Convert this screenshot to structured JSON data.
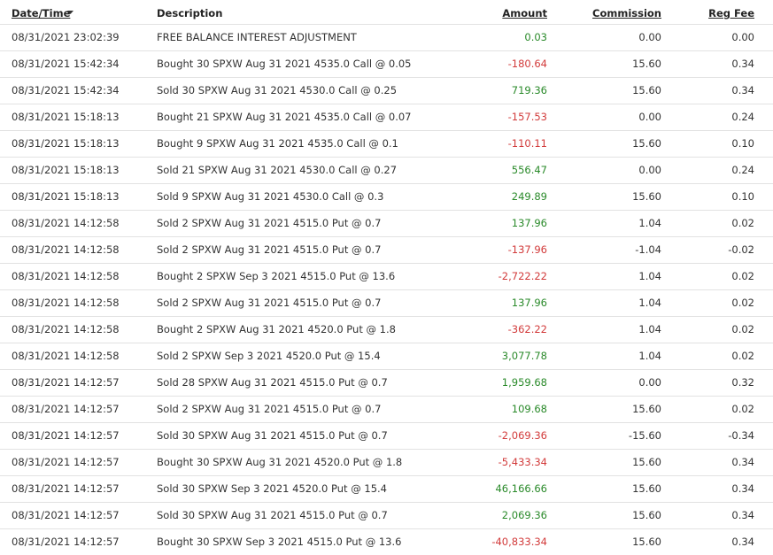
{
  "table": {
    "columns": [
      "Date/Time",
      "Description",
      "Amount",
      "Commission",
      "Reg Fee"
    ],
    "rows": [
      [
        "08/31/2021 23:02:39",
        "FREE BALANCE INTEREST ADJUSTMENT",
        "0.03",
        "0.00",
        "0.00"
      ],
      [
        "08/31/2021 15:42:34",
        "Bought 30 SPXW Aug 31 2021 4535.0 Call @ 0.05",
        "-180.64",
        "15.60",
        "0.34"
      ],
      [
        "08/31/2021 15:42:34",
        "Sold 30 SPXW Aug 31 2021 4530.0 Call @ 0.25",
        "719.36",
        "15.60",
        "0.34"
      ],
      [
        "08/31/2021 15:18:13",
        "Bought 21 SPXW Aug 31 2021 4535.0 Call @ 0.07",
        "-157.53",
        "0.00",
        "0.24"
      ],
      [
        "08/31/2021 15:18:13",
        "Bought 9 SPXW Aug 31 2021 4535.0 Call @ 0.1",
        "-110.11",
        "15.60",
        "0.10"
      ],
      [
        "08/31/2021 15:18:13",
        "Sold 21 SPXW Aug 31 2021 4530.0 Call @ 0.27",
        "556.47",
        "0.00",
        "0.24"
      ],
      [
        "08/31/2021 15:18:13",
        "Sold 9 SPXW Aug 31 2021 4530.0 Call @ 0.3",
        "249.89",
        "15.60",
        "0.10"
      ],
      [
        "08/31/2021 14:12:58",
        "Sold 2 SPXW Aug 31 2021 4515.0 Put @ 0.7",
        "137.96",
        "1.04",
        "0.02"
      ],
      [
        "08/31/2021 14:12:58",
        "Sold 2 SPXW Aug 31 2021 4515.0 Put @ 0.7",
        "-137.96",
        "-1.04",
        "-0.02"
      ],
      [
        "08/31/2021 14:12:58",
        "Bought 2 SPXW Sep 3 2021 4515.0 Put @ 13.6",
        "-2,722.22",
        "1.04",
        "0.02"
      ],
      [
        "08/31/2021 14:12:58",
        "Sold 2 SPXW Aug 31 2021 4515.0 Put @ 0.7",
        "137.96",
        "1.04",
        "0.02"
      ],
      [
        "08/31/2021 14:12:58",
        "Bought 2 SPXW Aug 31 2021 4520.0 Put @ 1.8",
        "-362.22",
        "1.04",
        "0.02"
      ],
      [
        "08/31/2021 14:12:58",
        "Sold 2 SPXW Sep 3 2021 4520.0 Put @ 15.4",
        "3,077.78",
        "1.04",
        "0.02"
      ],
      [
        "08/31/2021 14:12:57",
        "Sold 28 SPXW Aug 31 2021 4515.0 Put @ 0.7",
        "1,959.68",
        "0.00",
        "0.32"
      ],
      [
        "08/31/2021 14:12:57",
        "Sold 2 SPXW Aug 31 2021 4515.0 Put @ 0.7",
        "109.68",
        "15.60",
        "0.02"
      ],
      [
        "08/31/2021 14:12:57",
        "Sold 30 SPXW Aug 31 2021 4515.0 Put @ 0.7",
        "-2,069.36",
        "-15.60",
        "-0.34"
      ],
      [
        "08/31/2021 14:12:57",
        "Bought 30 SPXW Aug 31 2021 4520.0 Put @ 1.8",
        "-5,433.34",
        "15.60",
        "0.34"
      ],
      [
        "08/31/2021 14:12:57",
        "Sold 30 SPXW Sep 3 2021 4520.0 Put @ 15.4",
        "46,166.66",
        "15.60",
        "0.34"
      ],
      [
        "08/31/2021 14:12:57",
        "Sold 30 SPXW Aug 31 2021 4515.0 Put @ 0.7",
        "2,069.36",
        "15.60",
        "0.34"
      ],
      [
        "08/31/2021 14:12:57",
        "Bought 30 SPXW Sep 3 2021 4515.0 Put @ 13.6",
        "-40,833.34",
        "15.60",
        "0.34"
      ]
    ]
  }
}
